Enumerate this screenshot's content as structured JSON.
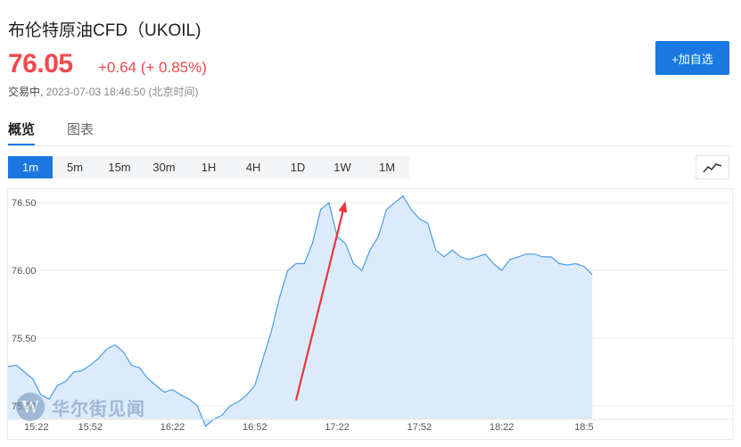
{
  "quote": {
    "title": "布伦特原油CFD（UKOIL)",
    "price": "76.05",
    "change": "+0.64 (+ 0.85%)",
    "status_label": "交易中,",
    "timestamp": "2023-07-03 18:46:50 (北京时间)",
    "up_color": "#f0494c"
  },
  "actions": {
    "add_watchlist_label": "+加自选"
  },
  "tabs": [
    {
      "label": "概览",
      "active": true
    },
    {
      "label": "图表",
      "active": false
    }
  ],
  "periods": [
    {
      "label": "1m",
      "active": true
    },
    {
      "label": "5m",
      "active": false
    },
    {
      "label": "15m",
      "active": false
    },
    {
      "label": "30m",
      "active": false
    },
    {
      "label": "1H",
      "active": false
    },
    {
      "label": "4H",
      "active": false
    },
    {
      "label": "1D",
      "active": false
    },
    {
      "label": "1W",
      "active": false
    },
    {
      "label": "1M",
      "active": false
    }
  ],
  "chart_type_icon": "line-chart-icon",
  "watermark": {
    "logo_letter": "W",
    "text": "华尔街见闻"
  },
  "colors": {
    "accent": "#1a78e0",
    "line": "#4a9bef",
    "area": "#dcebfb",
    "annotation_arrow": "#e8383d"
  },
  "chart_data": {
    "type": "area",
    "ylim": [
      74.9,
      76.6
    ],
    "yticks": [
      "76.50",
      "76.00",
      "75.50",
      "75.00"
    ],
    "xlim": [
      0,
      264
    ],
    "xticks": [
      {
        "label": "15:22",
        "t": 0
      },
      {
        "label": "15:52",
        "t": 30
      },
      {
        "label": "16:22",
        "t": 60
      },
      {
        "label": "16:52",
        "t": 90
      },
      {
        "label": "17:22",
        "t": 120
      },
      {
        "label": "17:52",
        "t": 150
      },
      {
        "label": "18:22",
        "t": 180
      },
      {
        "label": "18:5",
        "t": 210
      }
    ],
    "x_minutes": [
      0,
      3,
      6,
      9,
      12,
      15,
      18,
      21,
      24,
      27,
      30,
      33,
      36,
      39,
      42,
      45,
      48,
      51,
      54,
      57,
      60,
      63,
      66,
      69,
      72,
      75,
      78,
      81,
      84,
      87,
      90,
      93,
      96,
      99,
      102,
      105,
      108,
      111,
      114,
      117,
      120,
      123,
      126,
      129,
      132,
      135,
      138,
      141,
      144,
      147,
      150,
      153,
      156,
      159,
      162,
      165,
      168,
      171,
      174,
      177,
      180,
      183,
      186,
      189,
      192,
      195,
      198,
      201,
      204,
      207,
      210,
      213
    ],
    "values": [
      75.29,
      75.3,
      75.25,
      75.2,
      75.08,
      75.05,
      75.15,
      75.18,
      75.25,
      75.26,
      75.3,
      75.35,
      75.42,
      75.45,
      75.4,
      75.3,
      75.28,
      75.2,
      75.15,
      75.1,
      75.12,
      75.08,
      75.05,
      75.0,
      74.85,
      74.9,
      74.93,
      75.0,
      75.03,
      75.08,
      75.15,
      75.35,
      75.55,
      75.8,
      76.0,
      76.05,
      76.05,
      76.2,
      76.45,
      76.5,
      76.25,
      76.2,
      76.05,
      76.0,
      76.15,
      76.25,
      76.45,
      76.5,
      76.55,
      76.45,
      76.38,
      76.35,
      76.15,
      76.1,
      76.15,
      76.1,
      76.08,
      76.1,
      76.12,
      76.05,
      76.0,
      76.08,
      76.1,
      76.12,
      76.12,
      76.1,
      76.1,
      76.05,
      76.04,
      76.05,
      76.03,
      75.97
    ],
    "annotation": {
      "type": "arrow",
      "from": [
        105,
        75.04
      ],
      "to": [
        123,
        76.51
      ]
    }
  }
}
